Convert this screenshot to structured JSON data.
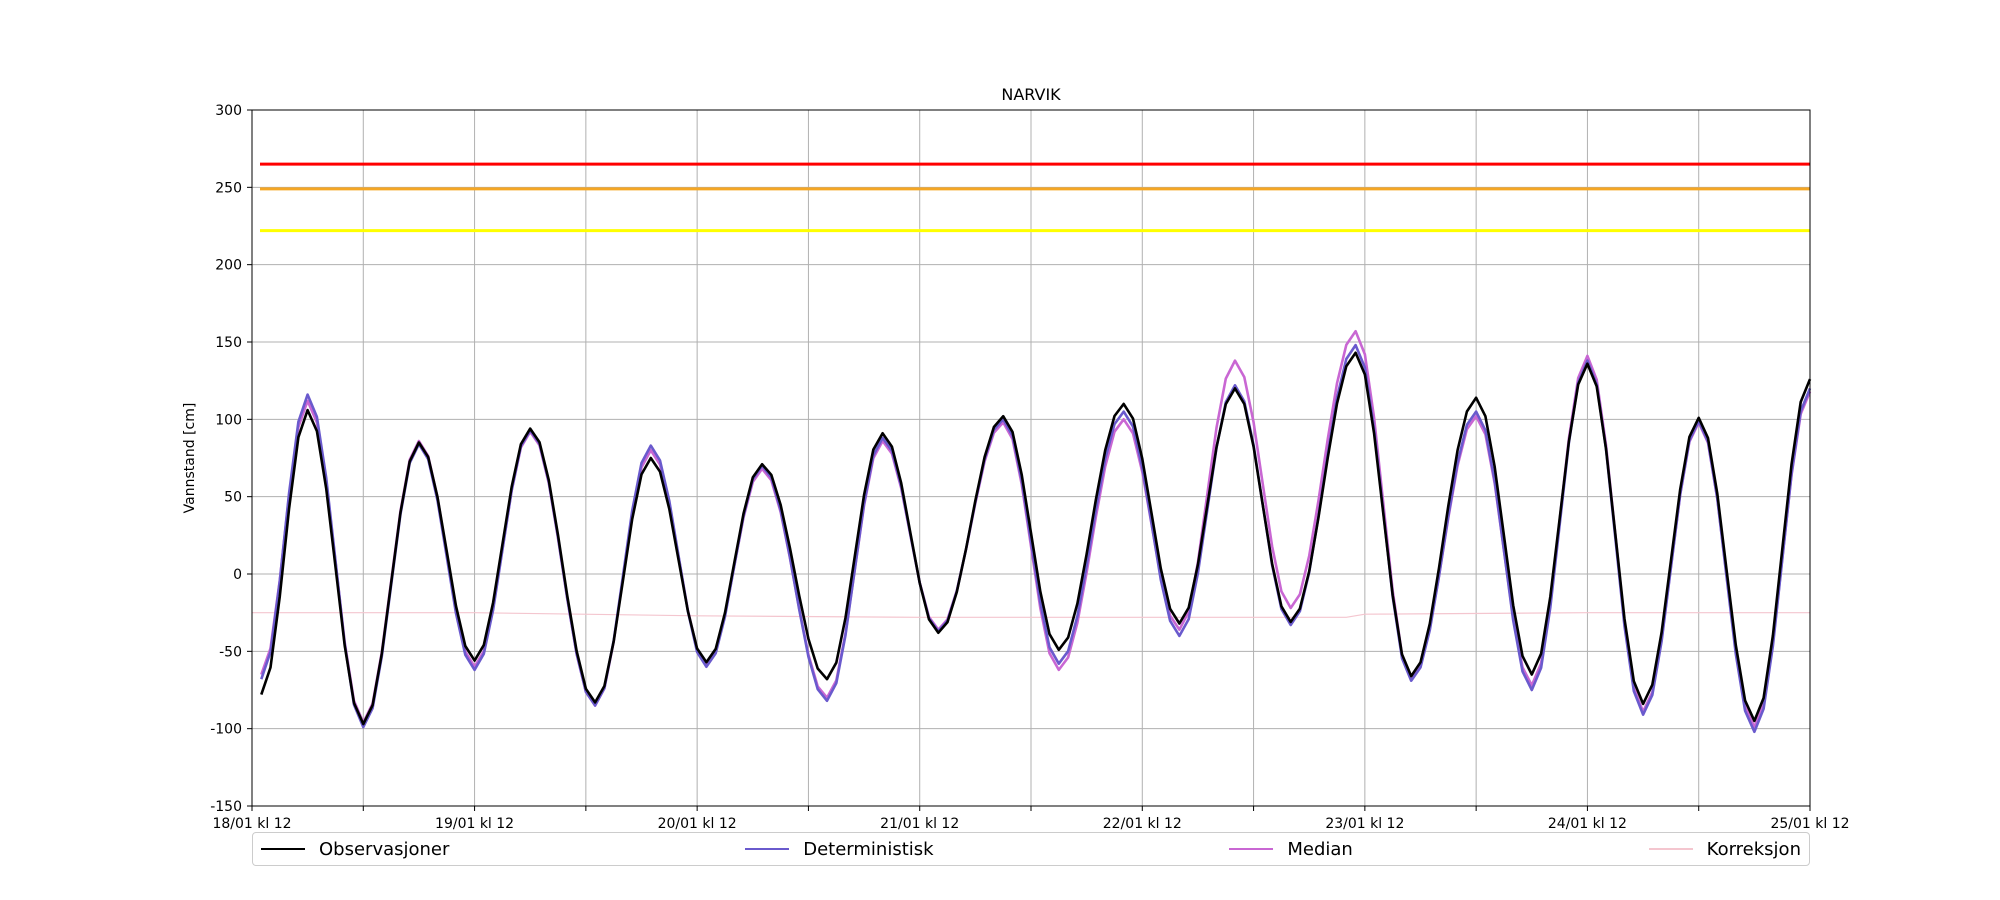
{
  "chart_data": {
    "type": "line",
    "title": "NARVIK",
    "xlabel": "",
    "ylabel": "Vannstand [cm]",
    "ylim": [
      -150,
      300
    ],
    "yticks": [
      -150,
      -100,
      -50,
      0,
      50,
      100,
      150,
      200,
      250,
      300
    ],
    "xlim": [
      0,
      168
    ],
    "x_unit": "hours since 18/01 kl 12",
    "xtick_labels": [
      {
        "x": 0,
        "label": "18/01 kl 12"
      },
      {
        "x": 12,
        "label": ""
      },
      {
        "x": 24,
        "label": "19/01 kl 12"
      },
      {
        "x": 36,
        "label": ""
      },
      {
        "x": 48,
        "label": "20/01 kl 12"
      },
      {
        "x": 60,
        "label": ""
      },
      {
        "x": 72,
        "label": "21/01 kl 12"
      },
      {
        "x": 84,
        "label": ""
      },
      {
        "x": 96,
        "label": "22/01 kl 12"
      },
      {
        "x": 108,
        "label": ""
      },
      {
        "x": 120,
        "label": "23/01 kl 12"
      },
      {
        "x": 132,
        "label": ""
      },
      {
        "x": 144,
        "label": "24/01 kl 12"
      },
      {
        "x": 156,
        "label": ""
      },
      {
        "x": 168,
        "label": "25/01 kl 12"
      }
    ],
    "grid": true,
    "legend_placement": "bottom",
    "thresholds": [
      {
        "y": 265,
        "color": "#ff0000"
      },
      {
        "y": 249,
        "color": "#f5a623"
      },
      {
        "y": 222,
        "color": "#ffff00"
      }
    ],
    "extrema": {
      "observasjoner": [
        [
          1,
          -78
        ],
        [
          6,
          106
        ],
        [
          12,
          -97
        ],
        [
          18,
          85
        ],
        [
          24,
          -56
        ],
        [
          30,
          94
        ],
        [
          37,
          -83
        ],
        [
          43,
          75
        ],
        [
          49,
          -57
        ],
        [
          55,
          71
        ],
        [
          62,
          -68
        ],
        [
          68,
          91
        ],
        [
          74,
          -38
        ],
        [
          81,
          102
        ],
        [
          87,
          -49
        ],
        [
          94,
          110
        ],
        [
          100,
          -32
        ],
        [
          106,
          120
        ],
        [
          112,
          -31
        ],
        [
          119,
          143
        ],
        [
          125,
          -66
        ],
        [
          132,
          114
        ],
        [
          138,
          -65
        ],
        [
          144,
          136
        ],
        [
          150,
          -84
        ],
        [
          156,
          101
        ],
        [
          162,
          -95
        ],
        [
          168,
          126
        ]
      ],
      "deterministisk": [
        [
          1,
          -68
        ],
        [
          6,
          116
        ],
        [
          12,
          -99
        ],
        [
          18,
          84
        ],
        [
          24,
          -62
        ],
        [
          30,
          93
        ],
        [
          37,
          -85
        ],
        [
          43,
          83
        ],
        [
          49,
          -60
        ],
        [
          55,
          70
        ],
        [
          62,
          -82
        ],
        [
          68,
          88
        ],
        [
          74,
          -37
        ],
        [
          81,
          100
        ],
        [
          87,
          -58
        ],
        [
          94,
          105
        ],
        [
          100,
          -40
        ],
        [
          106,
          122
        ],
        [
          112,
          -33
        ],
        [
          119,
          148
        ],
        [
          125,
          -69
        ],
        [
          132,
          105
        ],
        [
          138,
          -75
        ],
        [
          144,
          138
        ],
        [
          150,
          -91
        ],
        [
          156,
          99
        ],
        [
          162,
          -102
        ],
        [
          168,
          120
        ]
      ],
      "median": [
        [
          1,
          -65
        ],
        [
          6,
          112
        ],
        [
          12,
          -96
        ],
        [
          18,
          86
        ],
        [
          24,
          -60
        ],
        [
          30,
          92
        ],
        [
          37,
          -85
        ],
        [
          43,
          80
        ],
        [
          49,
          -58
        ],
        [
          55,
          68
        ],
        [
          62,
          -80
        ],
        [
          68,
          86
        ],
        [
          74,
          -36
        ],
        [
          81,
          98
        ],
        [
          87,
          -62
        ],
        [
          94,
          100
        ],
        [
          100,
          -36
        ],
        [
          106,
          138
        ],
        [
          112,
          -22
        ],
        [
          119,
          157
        ],
        [
          125,
          -67
        ],
        [
          132,
          102
        ],
        [
          138,
          -72
        ],
        [
          144,
          141
        ],
        [
          150,
          -89
        ],
        [
          156,
          98
        ],
        [
          162,
          -99
        ],
        [
          168,
          118
        ]
      ],
      "korreksjon": [
        [
          0,
          -25
        ],
        [
          24,
          -25
        ],
        [
          48,
          -27
        ],
        [
          72,
          -28
        ],
        [
          96,
          -28
        ],
        [
          118,
          -28
        ],
        [
          120,
          -26
        ],
        [
          144,
          -25
        ],
        [
          168,
          -25
        ]
      ]
    },
    "series": [
      {
        "name": "Observasjoner",
        "color": "#000000",
        "key": "observasjoner"
      },
      {
        "name": "Deterministisk",
        "color": "#6a5acd",
        "key": "deterministisk"
      },
      {
        "name": "Median",
        "color": "#c967d3",
        "key": "median"
      },
      {
        "name": "Korreksjon",
        "color": "#f4c6cf",
        "key": "korreksjon"
      }
    ]
  }
}
